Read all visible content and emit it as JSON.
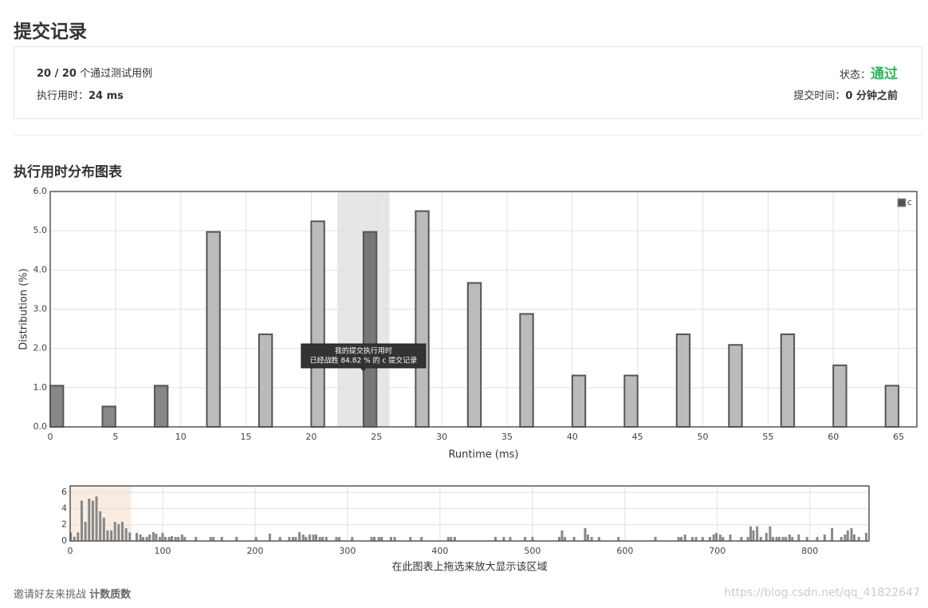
{
  "header": {
    "title": "提交记录"
  },
  "summary": {
    "passed": "20 / 20",
    "passed_label": "个通过测试用例",
    "runtime_label": "执行用时：",
    "runtime": "24 ms",
    "status_label": "状态：",
    "status": "通过",
    "time_label": "提交时间：",
    "time": "0 分钟之前"
  },
  "section_title": "执行用时分布图表",
  "chart_data": [
    {
      "type": "bar",
      "x_label": "Runtime (ms)",
      "y_label": "Distribution (%)",
      "x": [
        0.5,
        4.5,
        8.5,
        12.5,
        16.5,
        20.5,
        24.5,
        28.5,
        32.5,
        36.5,
        40.5,
        44.5,
        48.5,
        52.5,
        56.5,
        60.5,
        64.5
      ],
      "series": [
        {
          "name": "c",
          "color": "#555555",
          "colors": [
            "#888888",
            "#888888",
            "#888888",
            "#bbbbbb",
            "#bbbbbb",
            "#bbbbbb",
            "#777777",
            "#bbbbbb",
            "#bbbbbb",
            "#bbbbbb",
            "#bbbbbb",
            "#bbbbbb",
            "#bbbbbb",
            "#bbbbbb",
            "#bbbbbb",
            "#bbbbbb",
            "#bbbbbb"
          ],
          "values": [
            1.05,
            0.52,
            1.05,
            4.97,
            2.36,
            5.24,
            4.97,
            5.5,
            3.67,
            2.88,
            1.31,
            1.31,
            2.36,
            2.09,
            2.36,
            1.57,
            1.05
          ]
        }
      ],
      "xlim": [
        0,
        66.4
      ],
      "xticks": [
        0,
        5,
        10,
        15,
        20,
        25,
        30,
        35,
        40,
        45,
        50,
        55,
        60,
        65
      ],
      "ylim": [
        0,
        6
      ],
      "yticks": [
        {
          "value": 0,
          "label": "0.0"
        },
        {
          "value": 1,
          "label": "1.0"
        },
        {
          "value": 2,
          "label": "2.0"
        },
        {
          "value": 3,
          "label": "3.0"
        },
        {
          "value": 4,
          "label": "4.0"
        },
        {
          "value": 5,
          "label": "5.0"
        },
        {
          "value": 6,
          "label": "6.0"
        }
      ],
      "grid": true,
      "legend": "top-right",
      "highlight": [
        22,
        26
      ],
      "tooltip": [
        "我的提交执行用时",
        "已经战胜 84.82 % 的 c 提交记录"
      ]
    },
    {
      "type": "bar",
      "x_label": "在此图表上拖选来放大显示该区域",
      "color": "#888888",
      "x": [
        0.5,
        4.5,
        8.5,
        12.5,
        16.5,
        20.5,
        24.5,
        28.5,
        32.5,
        36.5,
        40.5,
        44.5,
        48.5,
        52.5,
        56.5,
        60.5,
        64.5,
        72,
        76,
        79,
        83,
        86,
        90,
        93,
        97,
        100,
        103,
        107,
        110,
        114,
        117,
        121,
        124,
        136,
        152,
        155,
        164,
        180,
        201,
        216,
        227,
        237,
        241,
        244,
        248,
        252,
        255,
        259,
        263,
        266,
        270,
        273,
        277,
        288,
        291,
        305,
        326,
        329,
        334,
        337,
        347,
        351,
        368,
        380,
        409,
        412,
        416,
        460,
        469,
        476,
        492,
        500,
        529,
        532,
        535,
        545,
        557,
        560,
        564,
        572,
        593,
        633,
        658,
        661,
        665,
        673,
        677,
        684,
        692,
        696,
        699,
        703,
        706,
        714,
        726,
        733,
        736,
        739,
        743,
        747,
        753,
        757,
        760,
        764,
        767,
        771,
        774,
        778,
        781,
        788,
        797,
        808,
        816,
        824,
        834,
        838,
        841,
        845,
        848,
        853,
        861
      ],
      "values": [
        1.05,
        0.52,
        1.05,
        4.97,
        2.36,
        5.24,
        4.97,
        5.5,
        3.67,
        2.88,
        1.31,
        1.31,
        2.36,
        2.09,
        2.36,
        1.57,
        1.05,
        1.0,
        0.8,
        0.5,
        0.5,
        0.8,
        1.1,
        0.9,
        0.5,
        1.0,
        0.5,
        0.5,
        0.6,
        0.5,
        0.5,
        0.8,
        0.5,
        0.5,
        0.5,
        0.5,
        0.5,
        0.5,
        0.5,
        0.9,
        0.5,
        0.5,
        0.5,
        0.5,
        1.1,
        0.8,
        0.5,
        0.8,
        0.8,
        0.8,
        0.5,
        0.5,
        0.5,
        0.5,
        0.5,
        0.5,
        0.5,
        0.5,
        0.5,
        0.5,
        0.5,
        0.5,
        0.5,
        0.5,
        0.5,
        0.5,
        0.5,
        0.5,
        0.5,
        0.5,
        0.5,
        0.5,
        0.5,
        1.3,
        0.5,
        0.5,
        1.6,
        0.8,
        0.5,
        0.5,
        0.5,
        0.5,
        0.5,
        0.5,
        0.8,
        0.5,
        0.5,
        0.5,
        0.5,
        0.8,
        1.0,
        0.8,
        0.5,
        0.8,
        0.5,
        0.5,
        1.8,
        1.3,
        1.8,
        0.5,
        1.0,
        1.8,
        0.5,
        0.5,
        0.5,
        0.5,
        0.5,
        0.8,
        0.5,
        0.8,
        0.5,
        0.5,
        0.8,
        1.6,
        0.5,
        0.8,
        1.3,
        1.6,
        0.8,
        0.5,
        1.0
      ],
      "xlim": [
        0,
        864
      ],
      "xticks": [
        0,
        100,
        200,
        300,
        400,
        500,
        600,
        700,
        800
      ],
      "ylim": [
        0,
        6.8
      ],
      "yticks": [
        0,
        2,
        4,
        6
      ],
      "grid": true,
      "selection": [
        0,
        66
      ]
    }
  ],
  "footer": {
    "invite": "邀请好友来挑战",
    "problem": "计数质数"
  },
  "watermark": "https://blog.csdn.net/qq_41822647"
}
